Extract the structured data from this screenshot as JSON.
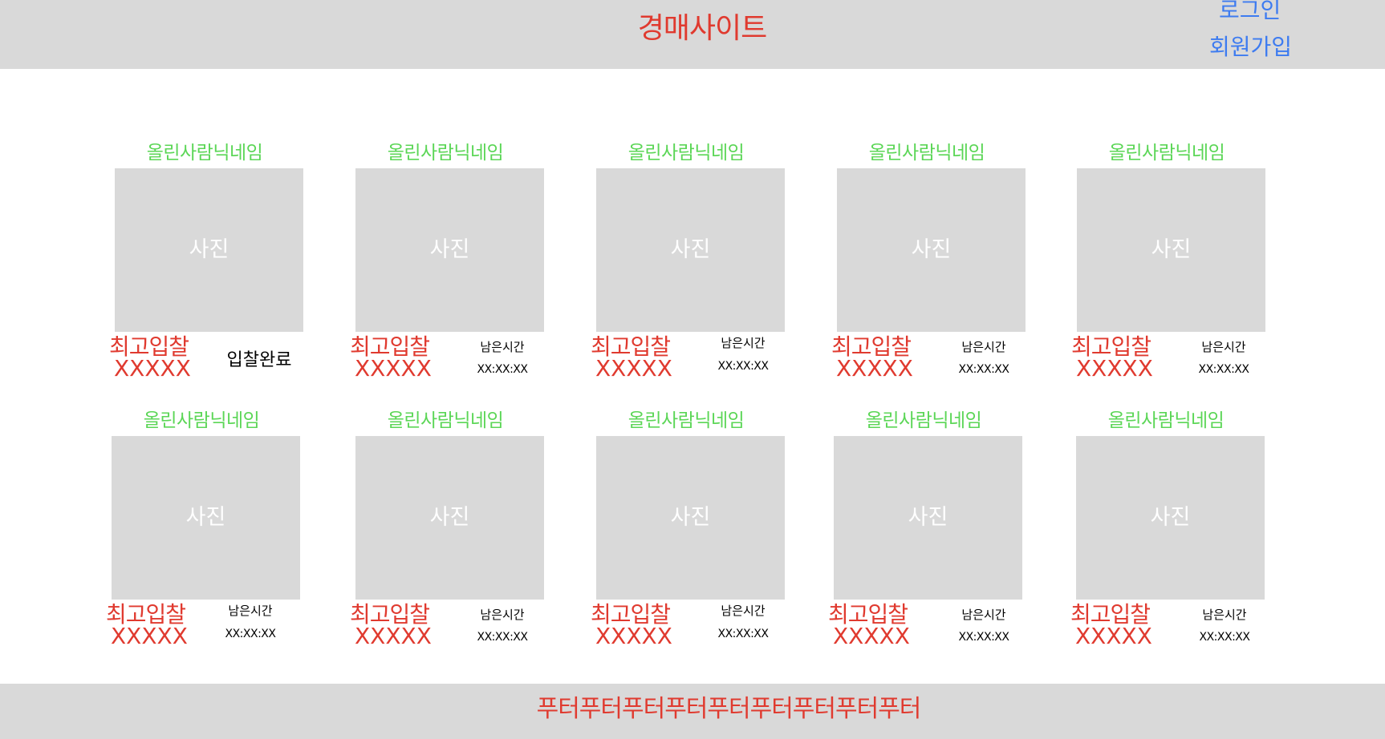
{
  "header": {
    "title": "경매사이트",
    "login": "로그인",
    "signup": "회원가입"
  },
  "cards": [
    {
      "nickname": "올린사람닉네임",
      "photo": "사진",
      "bid_label": "최고입찰",
      "bid_value": "XXXXX",
      "status": "입찰완료"
    },
    {
      "nickname": "올린사람닉네임",
      "photo": "사진",
      "bid_label": "최고입찰",
      "bid_value": "XXXXX",
      "time_label": "남은시간",
      "time_value": "XX:XX:XX"
    },
    {
      "nickname": "올린사람닉네임",
      "photo": "사진",
      "bid_label": "최고입찰",
      "bid_value": "XXXXX",
      "time_label": "남은시간",
      "time_value": "XX:XX:XX"
    },
    {
      "nickname": "올린사람닉네임",
      "photo": "사진",
      "bid_label": "최고입찰",
      "bid_value": "XXXXX",
      "time_label": "남은시간",
      "time_value": "XX:XX:XX"
    },
    {
      "nickname": "올린사람닉네임",
      "photo": "사진",
      "bid_label": "최고입찰",
      "bid_value": "XXXXX",
      "time_label": "남은시간",
      "time_value": "XX:XX:XX"
    },
    {
      "nickname": "올린사람닉네임",
      "photo": "사진",
      "bid_label": "최고입찰",
      "bid_value": "XXXXX",
      "time_label": "남은시간",
      "time_value": "XX:XX:XX"
    },
    {
      "nickname": "올린사람닉네임",
      "photo": "사진",
      "bid_label": "최고입찰",
      "bid_value": "XXXXX",
      "time_label": "남은시간",
      "time_value": "XX:XX:XX"
    },
    {
      "nickname": "올린사람닉네임",
      "photo": "사진",
      "bid_label": "최고입찰",
      "bid_value": "XXXXX",
      "time_label": "남은시간",
      "time_value": "XX:XX:XX"
    },
    {
      "nickname": "올린사람닉네임",
      "photo": "사진",
      "bid_label": "최고입찰",
      "bid_value": "XXXXX",
      "time_label": "남은시간",
      "time_value": "XX:XX:XX"
    },
    {
      "nickname": "올린사람닉네임",
      "photo": "사진",
      "bid_label": "최고입찰",
      "bid_value": "XXXXX",
      "time_label": "남은시간",
      "time_value": "XX:XX:XX"
    }
  ],
  "footer": {
    "text": "푸터푸터푸터푸터푸터푸터푸터푸터푸터"
  },
  "colors": {
    "title_red": "#e03a2f",
    "link_blue": "#3d7bf0",
    "nickname_green": "#5bd656",
    "placeholder_gray": "#d9d9d9"
  }
}
